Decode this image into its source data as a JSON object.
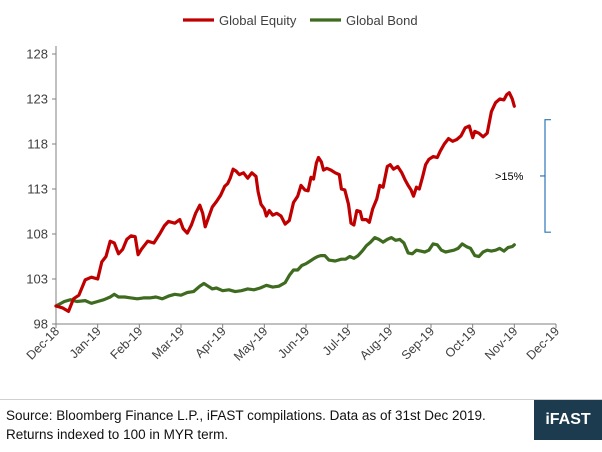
{
  "chart_data": {
    "type": "line",
    "title": "",
    "xlabel": "",
    "ylabel": "",
    "ylim": [
      98,
      129
    ],
    "y_ticks": [
      98,
      103,
      108,
      113,
      118,
      123,
      128
    ],
    "x_tick_labels": [
      "Dec-18",
      "Jan-19",
      "Feb-19",
      "Mar-19",
      "Apr-19",
      "May-19",
      "Jun-19",
      "Jul-19",
      "Aug-19",
      "Sep-19",
      "Oct-19",
      "Nov-19",
      "Dec-19"
    ],
    "legend_position": "top-center",
    "grid": false,
    "series": [
      {
        "name": "Global Equity",
        "color": "#c00000",
        "values": [
          [
            0,
            100
          ],
          [
            0.15,
            99.8
          ],
          [
            0.3,
            99.4
          ],
          [
            0.42,
            100.8
          ],
          [
            0.55,
            101.2
          ],
          [
            0.7,
            102.9
          ],
          [
            0.85,
            103.2
          ],
          [
            1.0,
            103.0
          ],
          [
            1.1,
            104.9
          ],
          [
            1.2,
            105.5
          ],
          [
            1.3,
            107.2
          ],
          [
            1.4,
            107.0
          ],
          [
            1.5,
            105.8
          ],
          [
            1.6,
            106.3
          ],
          [
            1.7,
            107.4
          ],
          [
            1.8,
            107.8
          ],
          [
            1.9,
            107.7
          ],
          [
            1.97,
            105.7
          ],
          [
            2.05,
            106.3
          ],
          [
            2.2,
            107.2
          ],
          [
            2.35,
            107.0
          ],
          [
            2.5,
            108.1
          ],
          [
            2.6,
            108.9
          ],
          [
            2.7,
            109.4
          ],
          [
            2.85,
            109.2
          ],
          [
            2.97,
            109.6
          ],
          [
            3.05,
            108.6
          ],
          [
            3.15,
            108.1
          ],
          [
            3.25,
            109.0
          ],
          [
            3.35,
            110.3
          ],
          [
            3.45,
            111.2
          ],
          [
            3.52,
            110.3
          ],
          [
            3.58,
            108.8
          ],
          [
            3.65,
            109.7
          ],
          [
            3.75,
            111.0
          ],
          [
            3.85,
            111.6
          ],
          [
            3.95,
            112.3
          ],
          [
            4.05,
            113.3
          ],
          [
            4.12,
            113.6
          ],
          [
            4.18,
            114.2
          ],
          [
            4.25,
            115.2
          ],
          [
            4.32,
            115.0
          ],
          [
            4.4,
            114.6
          ],
          [
            4.5,
            114.8
          ],
          [
            4.6,
            114.2
          ],
          [
            4.7,
            114.8
          ],
          [
            4.8,
            114.4
          ],
          [
            4.85,
            112.7
          ],
          [
            4.92,
            111.3
          ],
          [
            5.0,
            110.8
          ],
          [
            5.05,
            110.0
          ],
          [
            5.12,
            110.6
          ],
          [
            5.2,
            110.1
          ],
          [
            5.3,
            110.3
          ],
          [
            5.4,
            110.0
          ],
          [
            5.5,
            109.1
          ],
          [
            5.6,
            109.5
          ],
          [
            5.7,
            111.5
          ],
          [
            5.8,
            112.2
          ],
          [
            5.88,
            113.4
          ],
          [
            5.97,
            112.9
          ],
          [
            6.05,
            112.8
          ],
          [
            6.12,
            114.3
          ],
          [
            6.18,
            114.1
          ],
          [
            6.25,
            115.9
          ],
          [
            6.3,
            116.5
          ],
          [
            6.37,
            116.0
          ],
          [
            6.42,
            115.1
          ],
          [
            6.5,
            115.3
          ],
          [
            6.6,
            115.1
          ],
          [
            6.7,
            114.8
          ],
          [
            6.8,
            114.6
          ],
          [
            6.85,
            113.0
          ],
          [
            6.93,
            112.9
          ],
          [
            7.02,
            111.3
          ],
          [
            7.08,
            109.2
          ],
          [
            7.15,
            109.0
          ],
          [
            7.22,
            110.6
          ],
          [
            7.3,
            110.5
          ],
          [
            7.35,
            109.6
          ],
          [
            7.45,
            109.6
          ],
          [
            7.52,
            109.3
          ],
          [
            7.6,
            110.8
          ],
          [
            7.7,
            111.9
          ],
          [
            7.77,
            113.4
          ],
          [
            7.85,
            113.2
          ],
          [
            7.95,
            115.5
          ],
          [
            8.02,
            115.7
          ],
          [
            8.1,
            115.2
          ],
          [
            8.2,
            115.5
          ],
          [
            8.3,
            114.8
          ],
          [
            8.37,
            114.1
          ],
          [
            8.45,
            113.4
          ],
          [
            8.52,
            112.9
          ],
          [
            8.58,
            112.2
          ],
          [
            8.65,
            113.2
          ],
          [
            8.72,
            113.0
          ],
          [
            8.8,
            114.4
          ],
          [
            8.87,
            115.7
          ],
          [
            8.95,
            116.3
          ],
          [
            9.05,
            116.6
          ],
          [
            9.15,
            116.5
          ],
          [
            9.22,
            117.2
          ],
          [
            9.32,
            118.0
          ],
          [
            9.42,
            118.6
          ],
          [
            9.52,
            118.3
          ],
          [
            9.62,
            118.5
          ],
          [
            9.72,
            118.9
          ],
          [
            9.82,
            119.8
          ],
          [
            9.92,
            120.0
          ],
          [
            10.0,
            118.7
          ],
          [
            10.05,
            119.4
          ],
          [
            10.15,
            119.2
          ],
          [
            10.25,
            118.8
          ],
          [
            10.35,
            119.2
          ],
          [
            10.45,
            121.6
          ],
          [
            10.55,
            122.6
          ],
          [
            10.65,
            123.0
          ],
          [
            10.75,
            122.9
          ],
          [
            10.82,
            123.5
          ],
          [
            10.88,
            123.7
          ],
          [
            10.95,
            123.0
          ],
          [
            11.0,
            122.2
          ]
        ]
      },
      {
        "name": "Global Bond",
        "color": "#3e6b1f",
        "values": [
          [
            0,
            100
          ],
          [
            0.2,
            100.5
          ],
          [
            0.35,
            100.7
          ],
          [
            0.5,
            100.5
          ],
          [
            0.7,
            100.6
          ],
          [
            0.85,
            100.3
          ],
          [
            1.0,
            100.5
          ],
          [
            1.15,
            100.7
          ],
          [
            1.3,
            101.0
          ],
          [
            1.4,
            101.3
          ],
          [
            1.5,
            101.0
          ],
          [
            1.65,
            101.0
          ],
          [
            1.8,
            100.9
          ],
          [
            1.95,
            100.8
          ],
          [
            2.1,
            100.9
          ],
          [
            2.25,
            100.9
          ],
          [
            2.4,
            101.0
          ],
          [
            2.55,
            100.8
          ],
          [
            2.7,
            101.1
          ],
          [
            2.85,
            101.3
          ],
          [
            3.0,
            101.2
          ],
          [
            3.15,
            101.5
          ],
          [
            3.3,
            101.6
          ],
          [
            3.45,
            102.2
          ],
          [
            3.55,
            102.5
          ],
          [
            3.65,
            102.2
          ],
          [
            3.75,
            101.9
          ],
          [
            3.85,
            102.0
          ],
          [
            4.0,
            101.7
          ],
          [
            4.15,
            101.8
          ],
          [
            4.3,
            101.6
          ],
          [
            4.45,
            101.7
          ],
          [
            4.6,
            101.9
          ],
          [
            4.75,
            101.8
          ],
          [
            4.9,
            102.0
          ],
          [
            5.05,
            102.3
          ],
          [
            5.2,
            102.1
          ],
          [
            5.35,
            102.2
          ],
          [
            5.5,
            102.6
          ],
          [
            5.6,
            103.4
          ],
          [
            5.7,
            104.0
          ],
          [
            5.8,
            104.0
          ],
          [
            5.9,
            104.5
          ],
          [
            6.0,
            104.7
          ],
          [
            6.1,
            105.0
          ],
          [
            6.2,
            105.3
          ],
          [
            6.28,
            105.5
          ],
          [
            6.35,
            105.6
          ],
          [
            6.45,
            105.6
          ],
          [
            6.55,
            105.1
          ],
          [
            6.7,
            105.0
          ],
          [
            6.85,
            105.2
          ],
          [
            6.95,
            105.2
          ],
          [
            7.05,
            105.5
          ],
          [
            7.15,
            105.3
          ],
          [
            7.25,
            105.6
          ],
          [
            7.35,
            106.1
          ],
          [
            7.45,
            106.7
          ],
          [
            7.55,
            107.1
          ],
          [
            7.65,
            107.6
          ],
          [
            7.75,
            107.4
          ],
          [
            7.85,
            107.1
          ],
          [
            7.95,
            107.4
          ],
          [
            8.05,
            107.6
          ],
          [
            8.15,
            107.3
          ],
          [
            8.25,
            107.4
          ],
          [
            8.35,
            107.0
          ],
          [
            8.45,
            105.9
          ],
          [
            8.55,
            105.8
          ],
          [
            8.65,
            106.2
          ],
          [
            8.75,
            106.1
          ],
          [
            8.85,
            106.0
          ],
          [
            8.95,
            106.2
          ],
          [
            9.05,
            106.9
          ],
          [
            9.15,
            106.8
          ],
          [
            9.25,
            106.2
          ],
          [
            9.35,
            106.0
          ],
          [
            9.45,
            106.1
          ],
          [
            9.55,
            106.2
          ],
          [
            9.65,
            106.4
          ],
          [
            9.75,
            106.9
          ],
          [
            9.85,
            106.6
          ],
          [
            9.95,
            106.4
          ],
          [
            10.05,
            105.6
          ],
          [
            10.15,
            105.5
          ],
          [
            10.25,
            106.0
          ],
          [
            10.35,
            106.2
          ],
          [
            10.45,
            106.1
          ],
          [
            10.55,
            106.2
          ],
          [
            10.65,
            106.4
          ],
          [
            10.75,
            106.1
          ],
          [
            10.85,
            106.5
          ],
          [
            10.95,
            106.6
          ],
          [
            11.0,
            106.8
          ]
        ]
      }
    ],
    "annotation": {
      "text": ">15%",
      "y_top": 120.7,
      "y_bottom": 108.2
    }
  },
  "footer": {
    "source_line1": "Source: Bloomberg Finance L.P., iFAST compilations. Data as of 31st Dec 2019.",
    "source_line2": "Returns indexed to 100 in MYR term.",
    "logo": "iFAST"
  }
}
